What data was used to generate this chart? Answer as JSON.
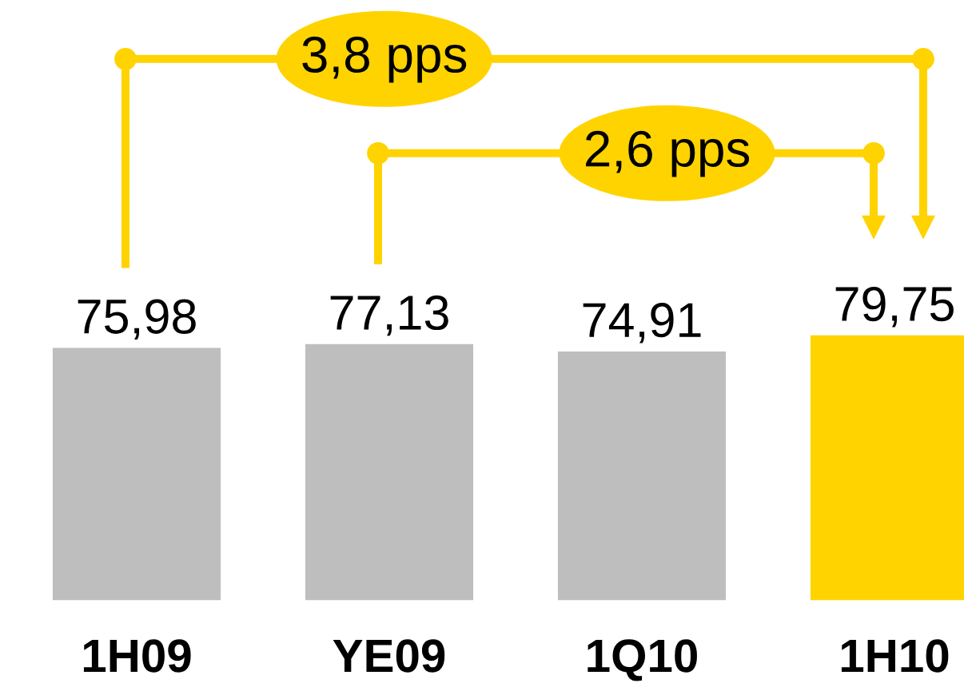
{
  "chart_data": {
    "type": "bar",
    "categories": [
      "1H09",
      "YE09",
      "1Q10",
      "1H10"
    ],
    "values": [
      75.98,
      77.13,
      74.91,
      79.75
    ],
    "colors": [
      "#bebebe",
      "#bebebe",
      "#bebebe",
      "#ffd300"
    ],
    "value_labels": [
      "75,98",
      "77,13",
      "74,91",
      "79,75"
    ],
    "annotations": [
      "3,8 pps",
      "2,6 pps"
    ]
  }
}
